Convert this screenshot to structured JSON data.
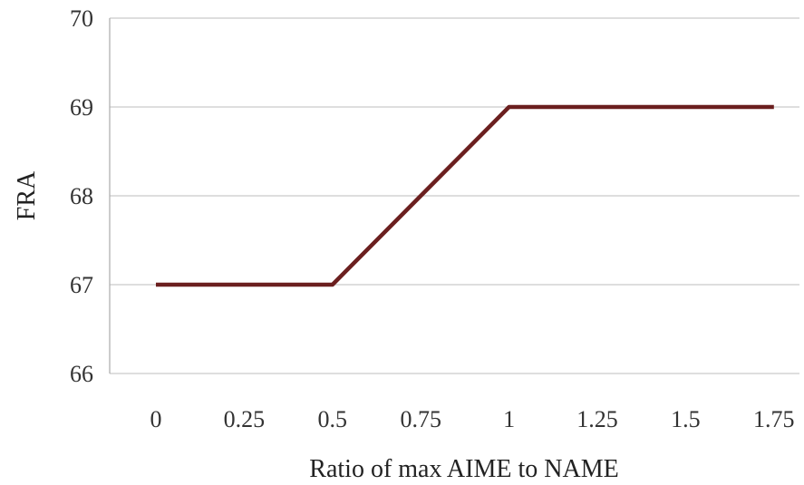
{
  "chart_data": {
    "type": "line",
    "title": "",
    "xlabel": "Ratio of max AIME  to NAME",
    "ylabel": "FRA",
    "categories": [
      "0",
      "0.25",
      "0.5",
      "0.75",
      "1",
      "1.25",
      "1.5",
      "1.75"
    ],
    "x": [
      0,
      0.25,
      0.5,
      0.75,
      1,
      1.25,
      1.5,
      1.75
    ],
    "ylim": [
      66,
      70
    ],
    "yticks": [
      "66",
      "67",
      "68",
      "69",
      "70"
    ],
    "grid": true,
    "legend": "none",
    "series": [
      {
        "color": "#6b1f1f",
        "values": [
          67,
          67,
          67,
          68,
          69,
          69,
          69,
          69
        ]
      }
    ]
  }
}
